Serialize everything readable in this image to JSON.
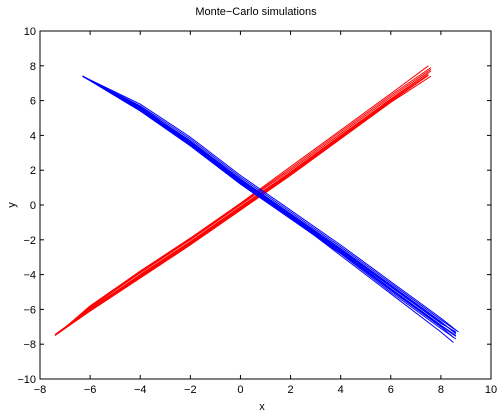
{
  "chart_data": {
    "type": "line",
    "title": "Monte−Carlo simulations",
    "xlabel": "x",
    "ylabel": "y",
    "xlim": [
      -8,
      10
    ],
    "ylim": [
      -10,
      10
    ],
    "xticks": [
      -8,
      -6,
      -4,
      -2,
      0,
      2,
      4,
      6,
      8,
      10
    ],
    "yticks": [
      -10,
      -8,
      -6,
      -4,
      -2,
      0,
      2,
      4,
      6,
      8,
      10
    ],
    "grid": false,
    "series_groups": [
      {
        "color": "#ff0000",
        "runs": [
          {
            "x": [
              -7.4,
              -6.0,
              -4.0,
              -2.0,
              0.0,
              2.0,
              4.0,
              6.0,
              7.5
            ],
            "y": [
              -7.45,
              -6.0,
              -4.1,
              -2.2,
              -0.2,
              1.8,
              3.9,
              6.0,
              7.5
            ]
          },
          {
            "x": [
              -7.3,
              -6.0,
              -4.0,
              -2.0,
              0.0,
              2.0,
              4.0,
              6.0,
              7.6
            ],
            "y": [
              -7.4,
              -5.9,
              -3.9,
              -2.0,
              0.0,
              2.0,
              4.1,
              6.2,
              7.8
            ]
          },
          {
            "x": [
              -7.4,
              -6.0,
              -4.0,
              -2.0,
              0.0,
              2.0,
              4.0,
              6.0,
              7.6
            ],
            "y": [
              -7.5,
              -6.1,
              -4.2,
              -2.3,
              -0.3,
              1.7,
              3.8,
              5.9,
              7.4
            ]
          },
          {
            "x": [
              -7.2,
              -6.0,
              -4.0,
              -2.0,
              0.0,
              2.0,
              4.0,
              6.0,
              7.5
            ],
            "y": [
              -7.3,
              -5.8,
              -3.8,
              -1.9,
              0.1,
              2.2,
              4.3,
              6.4,
              8.0
            ]
          },
          {
            "x": [
              -7.4,
              -6.0,
              -4.0,
              -2.0,
              0.0,
              2.0,
              4.0,
              6.0,
              7.5
            ],
            "y": [
              -7.45,
              -6.0,
              -4.0,
              -2.1,
              -0.1,
              1.9,
              4.0,
              6.1,
              7.6
            ]
          },
          {
            "x": [
              -7.3,
              -6.0,
              -4.0,
              -2.0,
              0.0,
              2.0,
              4.0,
              6.0,
              7.6
            ],
            "y": [
              -7.35,
              -5.95,
              -4.05,
              -2.15,
              -0.15,
              1.85,
              3.95,
              6.05,
              7.7
            ]
          },
          {
            "x": [
              -7.4,
              -6.0,
              -4.0,
              -2.0,
              0.0,
              2.0,
              4.0,
              6.0,
              7.5
            ],
            "y": [
              -7.5,
              -6.05,
              -4.15,
              -2.25,
              -0.25,
              1.75,
              3.85,
              5.95,
              7.45
            ]
          },
          {
            "x": [
              -7.3,
              -6.0,
              -4.0,
              -2.0,
              0.0,
              2.0,
              4.0,
              6.0,
              7.6
            ],
            "y": [
              -7.4,
              -5.85,
              -3.85,
              -1.95,
              0.05,
              2.1,
              4.2,
              6.3,
              7.9
            ]
          }
        ]
      },
      {
        "color": "#0000ff",
        "runs": [
          {
            "x": [
              -6.3,
              -4.0,
              -2.0,
              0.0,
              2.0,
              4.0,
              6.0,
              8.0,
              8.6
            ],
            "y": [
              7.4,
              5.6,
              3.6,
              1.4,
              -0.6,
              -2.6,
              -4.7,
              -6.8,
              -7.3
            ]
          },
          {
            "x": [
              -6.3,
              -4.0,
              -2.0,
              0.0,
              2.0,
              4.0,
              6.0,
              8.0,
              8.6
            ],
            "y": [
              7.4,
              5.7,
              3.8,
              1.6,
              -0.4,
              -2.4,
              -4.5,
              -6.6,
              -7.2
            ]
          },
          {
            "x": [
              -6.3,
              -4.0,
              -2.0,
              0.0,
              2.0,
              4.0,
              6.0,
              8.0,
              8.6
            ],
            "y": [
              7.4,
              5.4,
              3.4,
              1.2,
              -0.8,
              -2.8,
              -5.0,
              -7.1,
              -7.7
            ]
          },
          {
            "x": [
              -6.3,
              -4.0,
              -2.0,
              0.0,
              2.0,
              4.0,
              6.0,
              8.0,
              8.5
            ],
            "y": [
              7.4,
              5.5,
              3.5,
              1.3,
              -0.7,
              -2.9,
              -5.1,
              -7.3,
              -7.9
            ]
          },
          {
            "x": [
              -6.3,
              -4.0,
              -2.0,
              0.0,
              2.0,
              4.0,
              6.0,
              8.0,
              8.6
            ],
            "y": [
              7.4,
              5.6,
              3.7,
              1.5,
              -0.5,
              -2.5,
              -4.6,
              -6.7,
              -7.4
            ]
          },
          {
            "x": [
              -6.3,
              -4.0,
              -2.0,
              0.0,
              2.0,
              4.0,
              6.0,
              8.0,
              8.7
            ],
            "y": [
              7.4,
              5.8,
              3.9,
              1.7,
              -0.3,
              -2.3,
              -4.4,
              -6.5,
              -7.3
            ]
          },
          {
            "x": [
              -6.3,
              -4.0,
              -2.0,
              0.0,
              2.0,
              4.0,
              6.0,
              8.0,
              8.5
            ],
            "y": [
              7.4,
              5.45,
              3.45,
              1.25,
              -0.75,
              -2.75,
              -4.9,
              -7.0,
              -7.6
            ]
          },
          {
            "x": [
              -6.3,
              -4.0,
              -2.0,
              0.0,
              2.0,
              4.0,
              6.0,
              8.0,
              8.6
            ],
            "y": [
              7.4,
              5.55,
              3.55,
              1.35,
              -0.65,
              -2.65,
              -4.8,
              -6.9,
              -7.5
            ]
          },
          {
            "x": [
              -6.3,
              -4.0,
              -2.0,
              0.0,
              2.0,
              4.0,
              6.0,
              8.0,
              8.6
            ],
            "y": [
              7.4,
              5.65,
              3.65,
              1.45,
              -0.55,
              -2.55,
              -4.65,
              -6.75,
              -7.35
            ]
          },
          {
            "x": [
              -6.3,
              -4.0,
              -2.0,
              0.0,
              2.0,
              4.0,
              6.0,
              8.0,
              8.6
            ],
            "y": [
              7.4,
              5.5,
              3.5,
              1.3,
              -0.7,
              -2.7,
              -4.85,
              -6.95,
              -7.55
            ]
          }
        ]
      }
    ]
  }
}
